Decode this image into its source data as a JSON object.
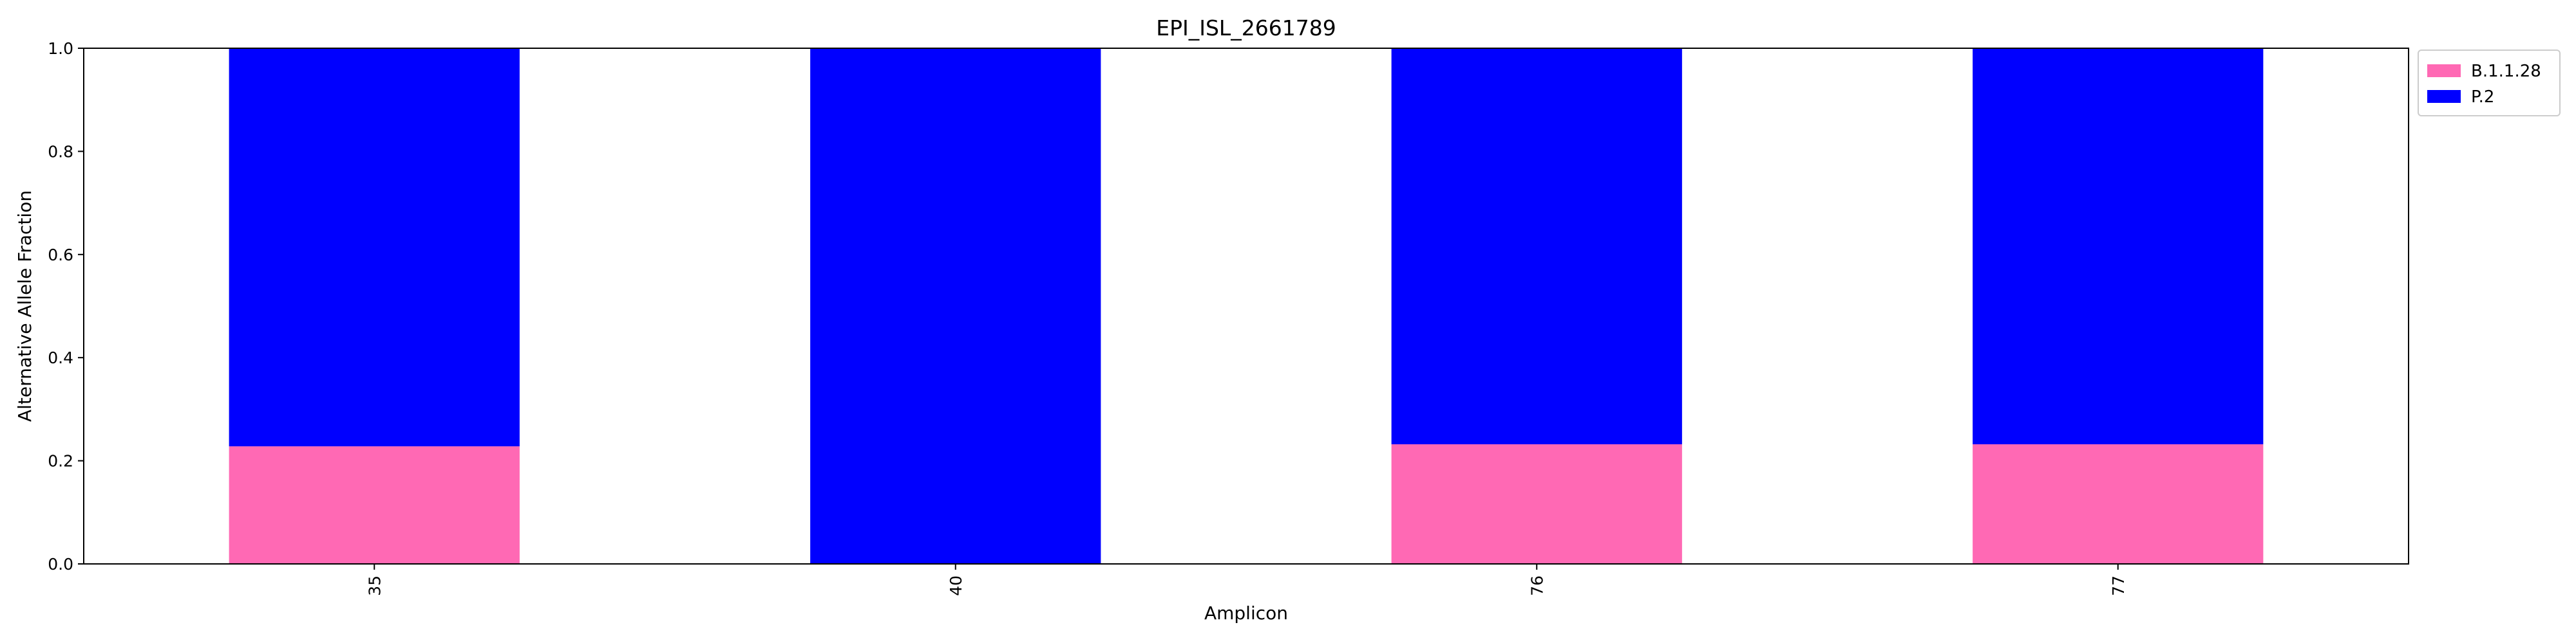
{
  "chart_data": {
    "type": "bar",
    "stacked": true,
    "title": "EPI_ISL_2661789",
    "xlabel": "Amplicon",
    "ylabel": "Alternative Allele Fraction",
    "categories": [
      "35",
      "40",
      "76",
      "77"
    ],
    "series": [
      {
        "name": "B.1.1.28",
        "color": "#ff69b4",
        "values": [
          0.228,
          0.0,
          0.232,
          0.232
        ]
      },
      {
        "name": "P.2",
        "color": "#0000ff",
        "values": [
          0.772,
          1.0,
          0.768,
          0.768
        ]
      }
    ],
    "ylim": [
      0,
      1.0
    ],
    "yticks": [
      0.0,
      0.2,
      0.4,
      0.6,
      0.8,
      1.0
    ],
    "ytick_labels": [
      "0.0",
      "0.2",
      "0.4",
      "0.6",
      "0.8",
      "1.0"
    ],
    "xtick_rotation": 90,
    "grid": false,
    "legend": {
      "placement": "outside-top-right"
    }
  }
}
